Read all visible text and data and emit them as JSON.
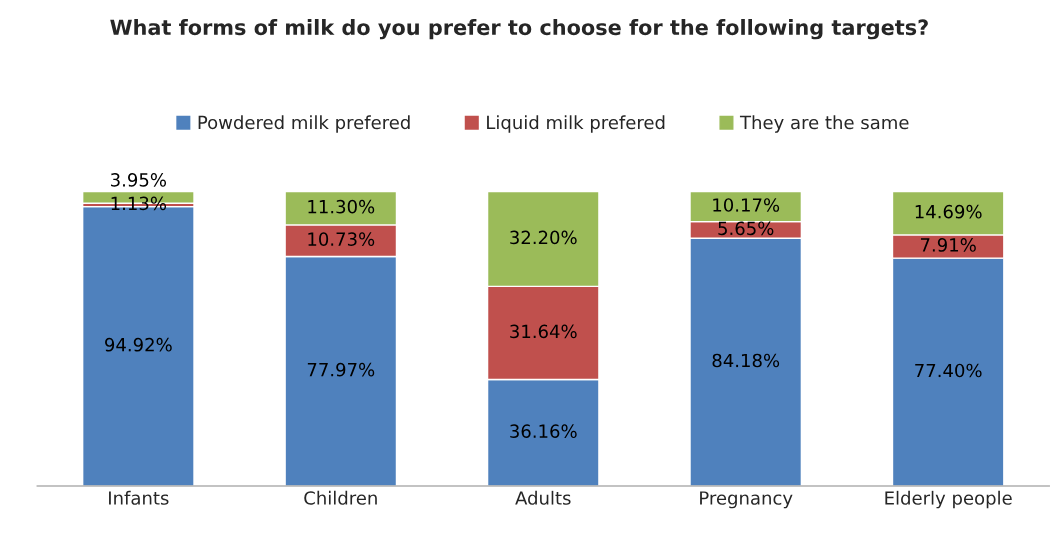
{
  "chart_data": {
    "type": "bar",
    "title": "What forms of milk do you prefer to choose for the following targets?",
    "categories": [
      "Infants",
      "Children",
      "Adults",
      "Pregnancy",
      "Elderly people"
    ],
    "series": [
      {
        "name": "Powdered milk prefered",
        "color": "#4f81bd",
        "values": [
          94.92,
          77.97,
          36.16,
          84.18,
          77.4
        ],
        "value_labels": [
          "94.92%",
          "77.97%",
          "36.16%",
          "84.18%",
          "77.40%"
        ]
      },
      {
        "name": "Liquid milk prefered",
        "color": "#c0504d",
        "values": [
          1.13,
          10.73,
          31.64,
          5.65,
          7.91
        ],
        "value_labels": [
          "1.13%",
          "10.73%",
          "31.64%",
          "5.65%",
          "7.91%"
        ]
      },
      {
        "name": "They are the same",
        "color": "#9bbb59",
        "values": [
          3.95,
          11.3,
          32.2,
          10.17,
          14.69
        ],
        "value_labels": [
          "3.95%",
          "11.30%",
          "32.20%",
          "10.17%",
          "14.69%"
        ]
      }
    ],
    "stacked": true,
    "tick_labels": "x",
    "legend": "top"
  }
}
